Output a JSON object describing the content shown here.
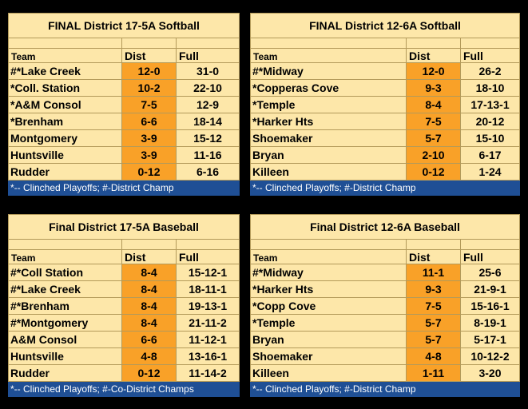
{
  "tables": [
    {
      "title": "FINAL District 17-5A Softball",
      "headers": {
        "team": "Team",
        "dist": "Dist",
        "full": "Full"
      },
      "rows": [
        {
          "team": "#*Lake Creek",
          "dist": "12-0",
          "full": "31-0"
        },
        {
          "team": "*Coll. Station",
          "dist": "10-2",
          "full": "22-10"
        },
        {
          "team": "*A&M Consol",
          "dist": "7-5",
          "full": "12-9"
        },
        {
          "team": "*Brenham",
          "dist": "6-6",
          "full": "18-14"
        },
        {
          "team": "Montgomery",
          "dist": "3-9",
          "full": "15-12"
        },
        {
          "team": "Huntsville",
          "dist": "3-9",
          "full": "11-16"
        },
        {
          "team": "Rudder",
          "dist": "0-12",
          "full": "6-16"
        }
      ],
      "footer": "*-- Clinched Playoffs; #-District Champ"
    },
    {
      "title": "FINAL District 12-6A Softball",
      "headers": {
        "team": "Team",
        "dist": "Dist",
        "full": "Full"
      },
      "rows": [
        {
          "team": "#*Midway",
          "dist": "12-0",
          "full": "26-2"
        },
        {
          "team": "*Copperas Cove",
          "dist": "9-3",
          "full": "18-10"
        },
        {
          "team": "*Temple",
          "dist": "8-4",
          "full": "17-13-1"
        },
        {
          "team": "*Harker Hts",
          "dist": "7-5",
          "full": "20-12"
        },
        {
          "team": "Shoemaker",
          "dist": "5-7",
          "full": "15-10"
        },
        {
          "team": "Bryan",
          "dist": "2-10",
          "full": "6-17"
        },
        {
          "team": "Killeen",
          "dist": "0-12",
          "full": "1-24"
        }
      ],
      "footer": "*-- Clinched Playoffs; #-District Champ"
    },
    {
      "title": "Final  District 17-5A Baseball",
      "headers": {
        "team": "Team",
        "dist": "Dist",
        "full": "Full"
      },
      "rows": [
        {
          "team": "#*Coll Station",
          "dist": "8-4",
          "full": "15-12-1"
        },
        {
          "team": "#*Lake Creek",
          "dist": "8-4",
          "full": "18-11-1"
        },
        {
          "team": "#*Brenham",
          "dist": "8-4",
          "full": "19-13-1"
        },
        {
          "team": "#*Montgomery",
          "dist": "8-4",
          "full": "21-11-2"
        },
        {
          "team": "A&M Consol",
          "dist": "6-6",
          "full": "11-12-1"
        },
        {
          "team": "Huntsville",
          "dist": "4-8",
          "full": "13-16-1"
        },
        {
          "team": "Rudder",
          "dist": "0-12",
          "full": "11-14-2"
        }
      ],
      "footer": "*-- Clinched Playoffs; #-Co-District Champs"
    },
    {
      "title": "Final  District 12-6A Baseball",
      "headers": {
        "team": "Team",
        "dist": "Dist",
        "full": "Full"
      },
      "rows": [
        {
          "team": "#*Midway",
          "dist": "11-1",
          "full": "25-6"
        },
        {
          "team": "*Harker Hts",
          "dist": "9-3",
          "full": "21-9-1"
        },
        {
          "team": "*Copp Cove",
          "dist": "7-5",
          "full": "15-16-1"
        },
        {
          "team": "*Temple",
          "dist": "5-7",
          "full": "8-19-1"
        },
        {
          "team": "Bryan",
          "dist": "5-7",
          "full": "5-17-1"
        },
        {
          "team": "Shoemaker",
          "dist": "4-8",
          "full": "10-12-2"
        },
        {
          "team": "Killeen",
          "dist": "1-11",
          "full": "3-20"
        }
      ],
      "footer": "*-- Clinched Playoffs; #-District Champ"
    }
  ]
}
